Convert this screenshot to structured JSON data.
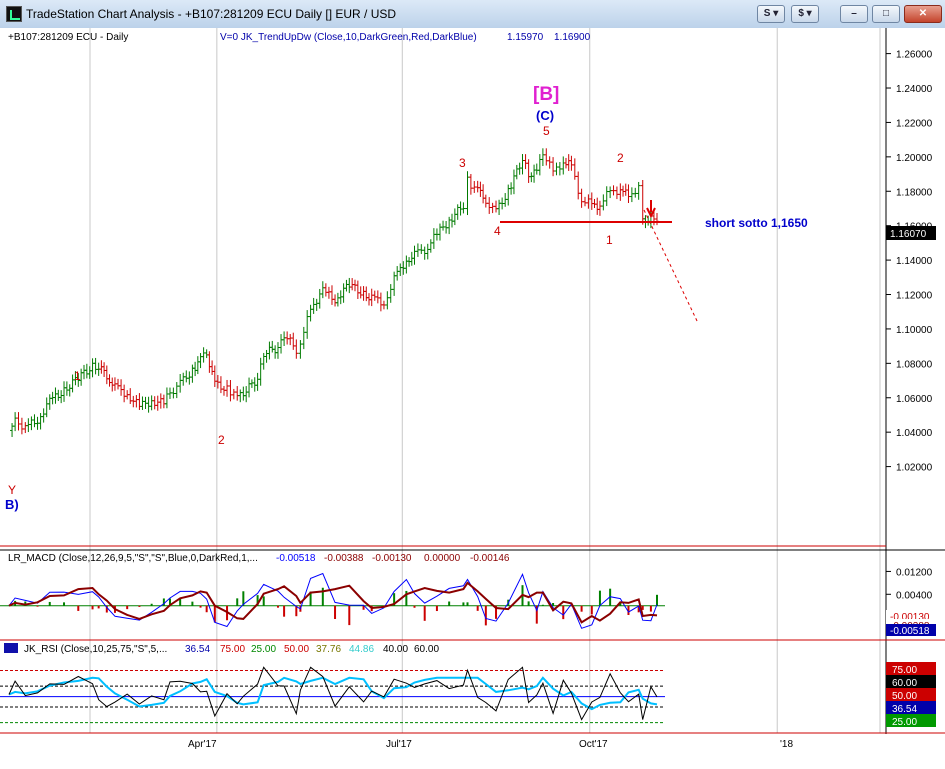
{
  "window": {
    "title": "TradeStation Chart Analysis - +B107:281209 ECU Daily [] EUR / USD",
    "buttons": {
      "s_menu": "S",
      "dollar_menu": "$",
      "minimize": "–",
      "restore": "□",
      "close": "✕"
    }
  },
  "colors": {
    "up_bar": "#007a00",
    "down_bar": "#cc0000",
    "neutral_bar": "#000080",
    "gridline": "#c8c8c8",
    "separator": "#cc0000",
    "macd_line": "#0000ff",
    "macd_signal": "#8b0000",
    "rsi_line": "#000000",
    "rsi_avg": "#00bfff",
    "rsi_mid": "#0000ff"
  },
  "chart_data": [
    {
      "type": "ohlc",
      "pane": "price",
      "header_left": "+B107:281209 ECU - Daily",
      "indicator_label": "V=0  JK_TrendUpDw (Close,10,DarkGreen,Red,DarkBlue)",
      "indicator_values": [
        "1.15970",
        "1.16900"
      ],
      "ylim": [
        1.0,
        1.265
      ],
      "yticks": [
        "1.26000",
        "1.24000",
        "1.22000",
        "1.20000",
        "1.18000",
        "1.16000",
        "1.14000",
        "1.12000",
        "1.10000",
        "1.08000",
        "1.06000",
        "1.04000",
        "1.02000"
      ],
      "last_price": "1.16070",
      "x_ticks": [
        "Apr'17",
        "Jul'17",
        "Oct'17",
        "'18"
      ],
      "series_close": [
        [
          "2016-12-20",
          1.041
        ],
        [
          "2016-12-23",
          1.046
        ],
        [
          "2016-12-28",
          1.043
        ],
        [
          "2017-01-03",
          1.047
        ],
        [
          "2017-01-09",
          1.058
        ],
        [
          "2017-01-16",
          1.064
        ],
        [
          "2017-01-23",
          1.072
        ],
        [
          "2017-01-30",
          1.078
        ],
        [
          "2017-02-02",
          1.078
        ],
        [
          "2017-02-06",
          1.073
        ],
        [
          "2017-02-10",
          1.066
        ],
        [
          "2017-02-16",
          1.062
        ],
        [
          "2017-02-22",
          1.055
        ],
        [
          "2017-02-28",
          1.058
        ],
        [
          "2017-03-06",
          1.057
        ],
        [
          "2017-03-09",
          1.063
        ],
        [
          "2017-03-14",
          1.068
        ],
        [
          "2017-03-20",
          1.076
        ],
        [
          "2017-03-24",
          1.082
        ],
        [
          "2017-03-27",
          1.086
        ],
        [
          "2017-03-31",
          1.068
        ],
        [
          "2017-04-06",
          1.065
        ],
        [
          "2017-04-11",
          1.06
        ],
        [
          "2017-04-14",
          1.063
        ],
        [
          "2017-04-21",
          1.071
        ],
        [
          "2017-04-24",
          1.086
        ],
        [
          "2017-05-01",
          1.089
        ],
        [
          "2017-05-04",
          1.097
        ],
        [
          "2017-05-10",
          1.088
        ],
        [
          "2017-05-12",
          1.091
        ],
        [
          "2017-05-17",
          1.112
        ],
        [
          "2017-05-23",
          1.122
        ],
        [
          "2017-05-29",
          1.117
        ],
        [
          "2017-06-05",
          1.126
        ],
        [
          "2017-06-12",
          1.12
        ],
        [
          "2017-06-16",
          1.118
        ],
        [
          "2017-06-22",
          1.115
        ],
        [
          "2017-06-27",
          1.129
        ],
        [
          "2017-07-03",
          1.14
        ],
        [
          "2017-07-07",
          1.143
        ],
        [
          "2017-07-12",
          1.146
        ],
        [
          "2017-07-18",
          1.155
        ],
        [
          "2017-07-24",
          1.163
        ],
        [
          "2017-07-31",
          1.172
        ],
        [
          "2017-08-02",
          1.186
        ],
        [
          "2017-08-07",
          1.18
        ],
        [
          "2017-08-11",
          1.175
        ],
        [
          "2017-08-16",
          1.168
        ],
        [
          "2017-08-22",
          1.18
        ],
        [
          "2017-08-29",
          1.199
        ],
        [
          "2017-09-01",
          1.19
        ],
        [
          "2017-09-05",
          1.191
        ],
        [
          "2017-09-08",
          1.203
        ],
        [
          "2017-09-13",
          1.191
        ],
        [
          "2017-09-18",
          1.197
        ],
        [
          "2017-09-22",
          1.195
        ],
        [
          "2017-09-27",
          1.174
        ],
        [
          "2017-10-02",
          1.173
        ],
        [
          "2017-10-06",
          1.171
        ],
        [
          "2017-10-11",
          1.181
        ],
        [
          "2017-10-16",
          1.18
        ],
        [
          "2017-10-20",
          1.178
        ],
        [
          "2017-10-25",
          1.182
        ],
        [
          "2017-10-27",
          1.163
        ],
        [
          "2017-10-31",
          1.164
        ],
        [
          "2017-11-03",
          1.161
        ]
      ]
    },
    {
      "type": "line",
      "pane": "macd",
      "legend_label": "LR_MACD (Close,12,26,9,5,\"S\",\"S\",Blue,0,DarkRed,1,...",
      "legend_values": [
        "-0.00518",
        "-0.00388",
        "-0.00130",
        "0.00000",
        "-0.00146"
      ],
      "yticks": [
        "0.01200",
        "0.00400"
      ],
      "value_tags": [
        "-0.00130",
        "-0.00388",
        "-0.00518"
      ],
      "ylim": [
        -0.012,
        0.016
      ]
    },
    {
      "type": "line",
      "pane": "rsi",
      "legend_label": "JK_RSI (Close,10,25,75,\"S\",5,...",
      "legend_values": [
        "36.54",
        "75.00",
        "25.00",
        "50.00",
        "37.76",
        "44.86",
        "40.00",
        "60.00"
      ],
      "value_tags": [
        "75.00",
        "60.00",
        "50.00",
        "36.54",
        "25.00"
      ],
      "ylim": [
        18,
        85
      ]
    }
  ],
  "annotations": {
    "wave_B_bracket": "[B]",
    "wave_C": "(C)",
    "wave_Y": "Y",
    "wave_B_paren": "B)",
    "label_1_left": "1",
    "label_2_left": "2",
    "label_3": "3",
    "label_4": "4",
    "label_5": "5",
    "label_2_right": "2",
    "label_1_right": "1",
    "short_note": "short sotto 1,1650"
  }
}
